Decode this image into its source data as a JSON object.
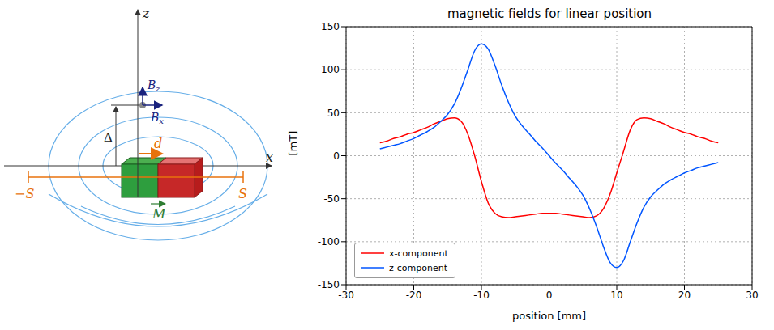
{
  "diagram": {
    "axis_x": "x",
    "axis_z": "z",
    "field_z": {
      "symbol": "B",
      "subscript": "z"
    },
    "field_x": {
      "symbol": "B",
      "subscript": "x"
    },
    "distance": "Δ",
    "displacement": "d",
    "stroke_min": "−S",
    "stroke_max": "S",
    "magnetization": "M"
  },
  "chart_data": {
    "type": "line",
    "title": "magnetic fields for linear position",
    "x_label": "position [mm]",
    "y_label": "[mT]",
    "x": [
      -25,
      -24,
      -23,
      -22,
      -21,
      -20,
      -19,
      -18,
      -17,
      -16,
      -15,
      -14,
      -13,
      -12,
      -11,
      -10,
      -9,
      -8,
      -7,
      -6,
      -5,
      -4,
      -3,
      -2,
      -1,
      0,
      1,
      2,
      3,
      4,
      5,
      6,
      7,
      8,
      9,
      10,
      11,
      12,
      13,
      14,
      15,
      16,
      17,
      18,
      19,
      20,
      21,
      22,
      23,
      24,
      25
    ],
    "series": [
      {
        "name": "x-component",
        "color": "#ff0000",
        "values": [
          15,
          17,
          20,
          22,
          25,
          27,
          30,
          33,
          37,
          40,
          43,
          44,
          40,
          25,
          0,
          -30,
          -55,
          -67,
          -71,
          -72,
          -71,
          -70,
          -69,
          -68,
          -67,
          -67,
          -67,
          -68,
          -69,
          -70,
          -71,
          -72,
          -70,
          -62,
          -45,
          -20,
          5,
          30,
          42,
          44,
          43,
          40,
          37,
          33,
          30,
          27,
          25,
          22,
          20,
          17,
          15
        ]
      },
      {
        "name": "z-component",
        "color": "#0055ff",
        "values": [
          8,
          10,
          12,
          14,
          17,
          20,
          24,
          28,
          33,
          40,
          48,
          60,
          78,
          100,
          122,
          130,
          124,
          105,
          82,
          62,
          46,
          35,
          26,
          17,
          9,
          0,
          -9,
          -17,
          -26,
          -35,
          -46,
          -62,
          -82,
          -105,
          -124,
          -130,
          -122,
          -100,
          -78,
          -60,
          -48,
          -40,
          -33,
          -28,
          -24,
          -20,
          -17,
          -14,
          -12,
          -10,
          -8
        ]
      }
    ],
    "xlim": [
      -30,
      30
    ],
    "xticks": [
      -30,
      -20,
      -10,
      0,
      10,
      20,
      30
    ],
    "ylim": [
      -150,
      150
    ],
    "yticks": [
      -150,
      -100,
      -50,
      0,
      50,
      100,
      150
    ],
    "grid": true,
    "legend": "lower left"
  }
}
